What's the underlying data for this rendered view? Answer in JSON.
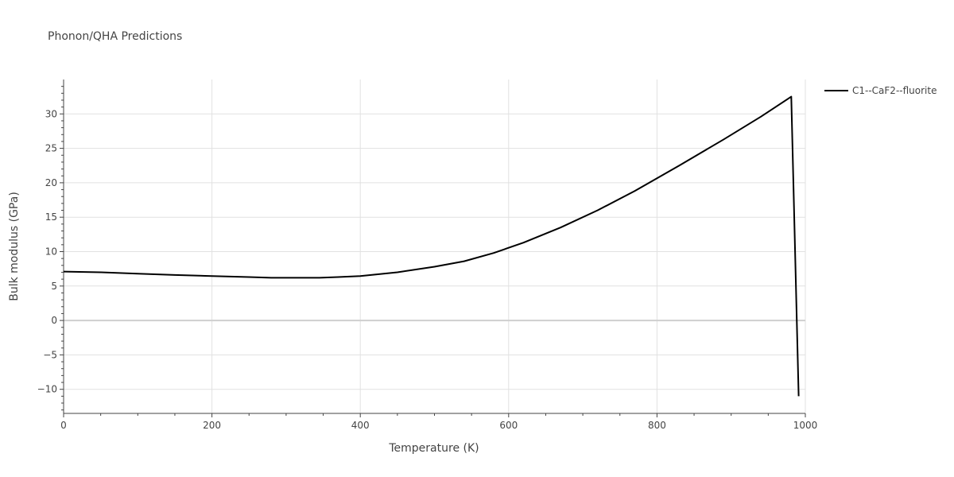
{
  "chart_data": {
    "type": "line",
    "title": "Phonon/QHA Predictions",
    "xlabel": "Temperature (K)",
    "ylabel": "Bulk modulus (GPa)",
    "xlim": [
      0,
      1000
    ],
    "ylim": [
      -13.5,
      35
    ],
    "x_ticks": [
      0,
      200,
      400,
      600,
      800,
      1000
    ],
    "y_ticks": [
      -10,
      -5,
      0,
      5,
      10,
      15,
      20,
      25,
      30
    ],
    "grid": true,
    "legend_position": "top-right",
    "series": [
      {
        "name": "C1--CaF2--fluorite",
        "color": "#000000",
        "x": [
          0,
          50,
          100,
          150,
          200,
          250,
          280,
          300,
          345,
          370,
          400,
          450,
          500,
          540,
          580,
          620,
          670,
          720,
          770,
          830,
          890,
          940,
          981,
          991
        ],
        "y": [
          7.1,
          7.0,
          6.8,
          6.6,
          6.45,
          6.3,
          6.2,
          6.2,
          6.2,
          6.3,
          6.45,
          7.0,
          7.8,
          8.6,
          9.8,
          11.3,
          13.5,
          16.0,
          18.8,
          22.5,
          26.3,
          29.6,
          32.5,
          -11.0
        ]
      }
    ]
  }
}
